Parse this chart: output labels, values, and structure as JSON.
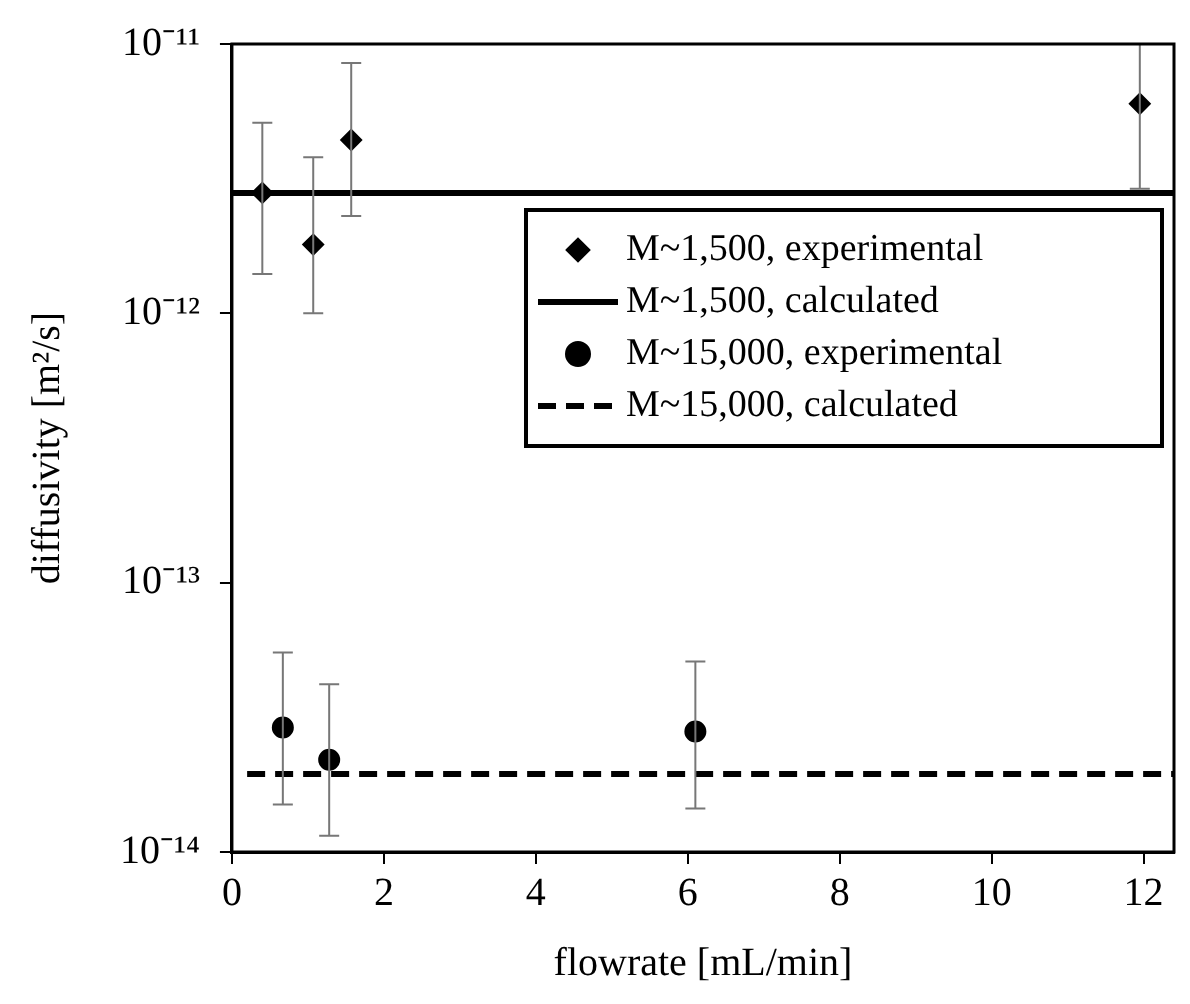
{
  "chart_data": {
    "type": "scatter",
    "xlabel": "flowrate [mL/min]",
    "ylabel": "diffusivity [m²/s]",
    "xlim": [
      0,
      12.4
    ],
    "xticks": [
      0,
      2,
      4,
      6,
      8,
      10,
      12
    ],
    "ylim": [
      1e-14,
      1e-11
    ],
    "yticks": [
      {
        "value": 1e-14,
        "label": "10⁻¹⁴"
      },
      {
        "value": 1e-13,
        "label": "10⁻¹³"
      },
      {
        "value": 1e-12,
        "label": "10⁻¹²"
      },
      {
        "value": 1e-11,
        "label": "10⁻¹¹"
      }
    ],
    "log": "y",
    "grid": false,
    "legend": "right",
    "series": [
      {
        "name": "M~1,500, experimental",
        "marker": "diamond",
        "color": "#000000",
        "x": [
          0.4,
          1.07,
          1.57,
          11.95
        ],
        "values": [
          2.8e-12,
          1.8e-12,
          4.4e-12,
          6e-12
        ],
        "errors": [
          [
            1.4e-12,
            5.1e-12
          ],
          [
            1e-12,
            3.8e-12
          ],
          [
            2.3e-12,
            8.5e-12
          ],
          [
            2.9e-12,
            1e-11
          ]
        ]
      },
      {
        "name": "M~1,500, calculated",
        "type": "line",
        "marker": "none",
        "line_style": "solid",
        "color": "#000000",
        "x": [
          0,
          12.4
        ],
        "values": [
          2.8e-12,
          2.8e-12
        ]
      },
      {
        "name": "M~15,000, experimental",
        "marker": "circle",
        "color": "#000000",
        "x": [
          0.67,
          1.28,
          6.1
        ],
        "values": [
          2.9e-14,
          2.2e-14,
          2.8e-14
        ],
        "errors": [
          [
            1.5e-14,
            5.5e-14
          ],
          [
            1.15e-14,
            4.2e-14
          ],
          [
            1.45e-14,
            5.1e-14
          ]
        ]
      },
      {
        "name": "M~15,000, calculated",
        "type": "line",
        "marker": "none",
        "line_style": "dashed",
        "color": "#000000",
        "x": [
          0.2,
          12.4
        ],
        "values": [
          1.95e-14,
          1.95e-14
        ]
      }
    ]
  }
}
